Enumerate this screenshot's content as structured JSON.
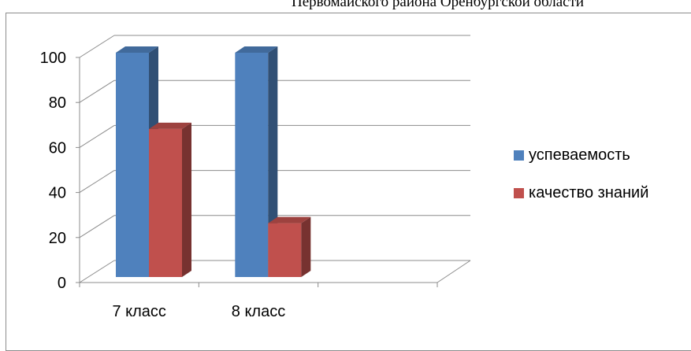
{
  "header": {
    "text": "Первомайского района Оренбургской области"
  },
  "chart_data": {
    "type": "bar",
    "style": "3d-clustered-column",
    "categories": [
      "7 класс",
      "8 класс",
      ""
    ],
    "series": [
      {
        "name": "успеваемость",
        "values": [
          100,
          100,
          null
        ],
        "color": "#4f81bd"
      },
      {
        "name": "качество знаний",
        "values": [
          66,
          24,
          null
        ],
        "color": "#c0504d"
      }
    ],
    "ylim": [
      0,
      100
    ],
    "yticks": [
      0,
      20,
      40,
      60,
      80,
      100
    ],
    "grid": true,
    "legend": "right",
    "title": "",
    "xlabel": "",
    "ylabel": ""
  }
}
